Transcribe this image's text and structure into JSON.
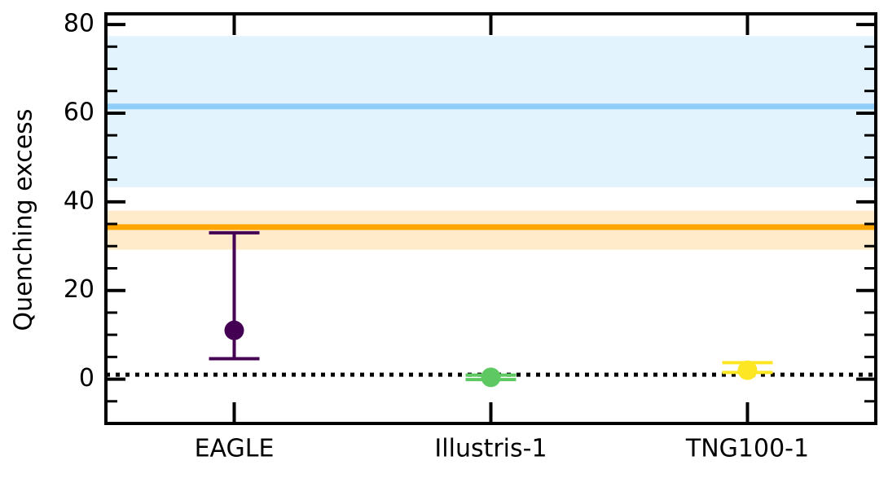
{
  "chart_data": {
    "type": "errorbar",
    "ylabel": "Quenching excess",
    "categories": [
      "EAGLE",
      "Illustris-1",
      "TNG100-1"
    ],
    "values": [
      11,
      0.4,
      2
    ],
    "err_low": [
      6.4,
      0.5,
      0.5
    ],
    "err_high": [
      22,
      0.5,
      1.7
    ],
    "colors": [
      "#440154",
      "#5ec962",
      "#fde725"
    ],
    "ylim": [
      -10,
      82.4
    ],
    "yticks": [
      0,
      20,
      40,
      60,
      80
    ],
    "yticks_minor": [
      -5,
      5,
      10,
      15,
      25,
      30,
      35,
      45,
      50,
      55,
      65,
      70,
      75
    ],
    "reference_lines": [
      {
        "value": 61.5,
        "low": 43.3,
        "high": 77.4,
        "color": "#90cdf9",
        "band_color": "#e3f3fe"
      },
      {
        "value": 34.3,
        "low": 29.2,
        "high": 38,
        "color": "#ffa500",
        "band_color": "#ffebc9"
      },
      {
        "value": 1,
        "color": "#000000",
        "style": "dotted"
      }
    ]
  }
}
